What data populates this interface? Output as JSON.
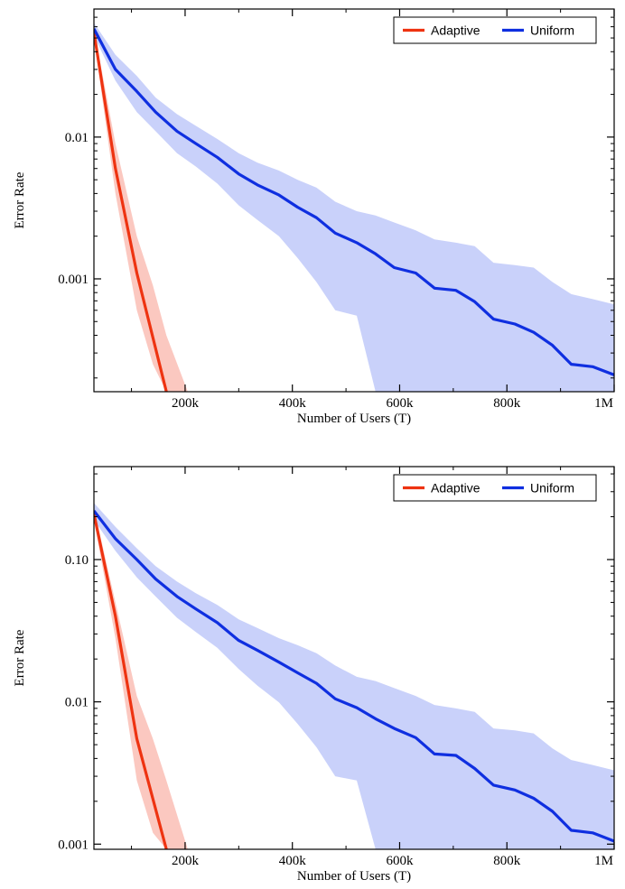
{
  "chart_data": [
    {
      "type": "line",
      "xlabel": "Number of Users (T)",
      "ylabel": "Error Rate",
      "xscale": "linear",
      "yscale": "log",
      "xlim": [
        30000,
        1000000
      ],
      "ylim": [
        0.00016,
        0.08
      ],
      "x_tick_labels": [
        "200k",
        "400k",
        "600k",
        "800k",
        "1M"
      ],
      "x_tick_values": [
        200000,
        400000,
        600000,
        800000,
        1000000
      ],
      "y_tick_labels": [
        "0.01",
        "0.001"
      ],
      "y_tick_values": [
        0.01,
        0.001
      ],
      "legend": {
        "position": "top-right",
        "entries": [
          "Adaptive",
          "Uniform"
        ]
      },
      "grid": false,
      "series": [
        {
          "name": "Adaptive",
          "color": "#ee3311",
          "band_color": "#fbc8c0",
          "x": [
            30000,
            70000,
            110000,
            165000
          ],
          "y": [
            0.055,
            0.006,
            0.0011,
            0.00016
          ],
          "band_x": [
            30000,
            70000,
            110000,
            140000,
            165000,
            205000
          ],
          "band_upper": [
            0.058,
            0.009,
            0.002,
            0.0009,
            0.0004,
            0.00016
          ],
          "band_lower": [
            0.05,
            0.004,
            0.0006,
            0.00025,
            0.00016,
            0.00016
          ]
        },
        {
          "name": "Uniform",
          "color": "#0f2fe0",
          "band_color": "#c9d1fa",
          "x": [
            30000,
            70000,
            110000,
            145000,
            185000,
            220000,
            260000,
            300000,
            335000,
            375000,
            410000,
            445000,
            480000,
            520000,
            555000,
            590000,
            630000,
            665000,
            705000,
            740000,
            775000,
            815000,
            850000,
            885000,
            920000,
            960000,
            1000000
          ],
          "y": [
            0.058,
            0.03,
            0.021,
            0.015,
            0.011,
            0.009,
            0.0072,
            0.0055,
            0.0046,
            0.0039,
            0.0032,
            0.0027,
            0.0021,
            0.0018,
            0.0015,
            0.0012,
            0.0011,
            0.00086,
            0.00083,
            0.00069,
            0.00052,
            0.00048,
            0.00042,
            0.00034,
            0.00025,
            0.00024,
            0.00021
          ],
          "band_x": [
            30000,
            70000,
            110000,
            145000,
            185000,
            220000,
            260000,
            300000,
            335000,
            375000,
            410000,
            445000,
            480000,
            520000,
            555000,
            590000,
            630000,
            665000,
            705000,
            740000,
            775000,
            815000,
            850000,
            885000,
            920000,
            960000,
            1000000
          ],
          "band_upper": [
            0.064,
            0.038,
            0.027,
            0.019,
            0.0145,
            0.012,
            0.0097,
            0.0077,
            0.0066,
            0.0058,
            0.005,
            0.0044,
            0.0035,
            0.003,
            0.0028,
            0.0025,
            0.0022,
            0.0019,
            0.0018,
            0.0017,
            0.0013,
            0.00125,
            0.0012,
            0.00095,
            0.00078,
            0.00072,
            0.00066
          ],
          "band_lower": [
            0.052,
            0.025,
            0.015,
            0.011,
            0.0077,
            0.0062,
            0.0047,
            0.0033,
            0.0026,
            0.002,
            0.0014,
            0.00095,
            0.0006,
            0.00055,
            0.00016,
            0.00016,
            0.00016,
            0.00016,
            0.00016,
            0.00016,
            0.00016,
            0.00016,
            0.00016,
            0.00016,
            0.00016,
            0.00016,
            0.00016
          ]
        }
      ]
    },
    {
      "type": "line",
      "xlabel": "Number of Users (T)",
      "ylabel": "Error Rate",
      "xscale": "linear",
      "yscale": "log",
      "xlim": [
        30000,
        1000000
      ],
      "ylim": [
        0.00092,
        0.45
      ],
      "x_tick_labels": [
        "200k",
        "400k",
        "600k",
        "800k",
        "1M"
      ],
      "x_tick_values": [
        200000,
        400000,
        600000,
        800000,
        1000000
      ],
      "y_tick_labels": [
        "0.10",
        "0.01",
        "0.001"
      ],
      "y_tick_values": [
        0.1,
        0.01,
        0.001
      ],
      "legend": {
        "position": "top-right",
        "entries": [
          "Adaptive",
          "Uniform"
        ]
      },
      "grid": false,
      "series": [
        {
          "name": "Adaptive",
          "color": "#ee3311",
          "band_color": "#fbc8c0",
          "x": [
            30000,
            70000,
            110000,
            165000
          ],
          "y": [
            0.21,
            0.04,
            0.0055,
            0.00092
          ],
          "band_x": [
            30000,
            70000,
            110000,
            140000,
            165000,
            205000
          ],
          "band_upper": [
            0.23,
            0.05,
            0.011,
            0.0055,
            0.0028,
            0.00092
          ],
          "band_lower": [
            0.19,
            0.028,
            0.0028,
            0.0012,
            0.00092,
            0.00092
          ]
        },
        {
          "name": "Uniform",
          "color": "#0f2fe0",
          "band_color": "#c9d1fa",
          "x": [
            30000,
            70000,
            110000,
            145000,
            185000,
            220000,
            260000,
            300000,
            335000,
            375000,
            410000,
            445000,
            480000,
            520000,
            555000,
            590000,
            630000,
            665000,
            705000,
            740000,
            775000,
            815000,
            850000,
            885000,
            920000,
            960000,
            1000000
          ],
          "y": [
            0.22,
            0.14,
            0.1,
            0.073,
            0.055,
            0.045,
            0.036,
            0.027,
            0.023,
            0.019,
            0.016,
            0.0135,
            0.0105,
            0.0091,
            0.0076,
            0.0065,
            0.0056,
            0.0043,
            0.0042,
            0.0034,
            0.0026,
            0.0024,
            0.0021,
            0.0017,
            0.00125,
            0.0012,
            0.00105
          ],
          "band_x": [
            30000,
            70000,
            110000,
            145000,
            185000,
            220000,
            260000,
            300000,
            335000,
            375000,
            410000,
            445000,
            480000,
            520000,
            555000,
            590000,
            630000,
            665000,
            705000,
            740000,
            775000,
            815000,
            850000,
            885000,
            920000,
            960000,
            1000000
          ],
          "band_upper": [
            0.25,
            0.17,
            0.12,
            0.09,
            0.07,
            0.058,
            0.048,
            0.038,
            0.033,
            0.028,
            0.025,
            0.022,
            0.018,
            0.015,
            0.014,
            0.0125,
            0.011,
            0.0095,
            0.009,
            0.0085,
            0.0065,
            0.0063,
            0.006,
            0.0047,
            0.0039,
            0.0036,
            0.0033
          ],
          "band_lower": [
            0.19,
            0.115,
            0.075,
            0.055,
            0.039,
            0.031,
            0.024,
            0.017,
            0.013,
            0.0099,
            0.007,
            0.0048,
            0.003,
            0.0028,
            0.00092,
            0.00092,
            0.00092,
            0.00092,
            0.00092,
            0.00092,
            0.00092,
            0.00092,
            0.00092,
            0.00092,
            0.00092,
            0.00092,
            0.00092
          ]
        }
      ]
    }
  ]
}
